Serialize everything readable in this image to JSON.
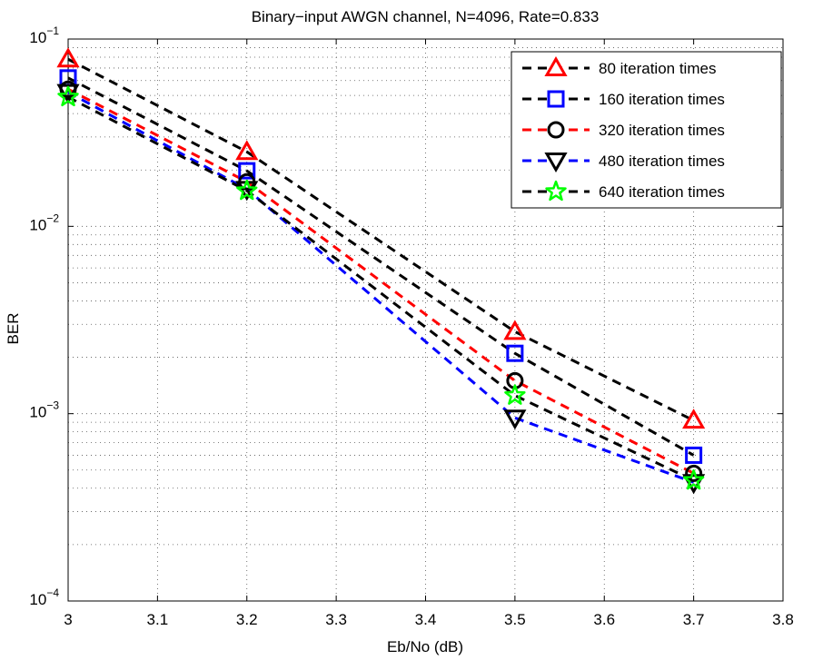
{
  "chart_data": {
    "type": "line",
    "title": "Binary−input AWGN channel, N=4096, Rate=0.833",
    "x_label": "Eb/No (dB)",
    "y_label": "BER",
    "x": [
      3.0,
      3.2,
      3.5,
      3.7
    ],
    "series": [
      {
        "name": "80 iteration times",
        "color": "#ff0000",
        "line_color": "#000000",
        "marker": "triangle-up",
        "values": [
          0.078,
          0.025,
          0.00274,
          0.00092
        ]
      },
      {
        "name": "160 iteration times",
        "color": "#0000ff",
        "line_color": "#000000",
        "marker": "square",
        "values": [
          0.062,
          0.0198,
          0.0021,
          0.0006
        ]
      },
      {
        "name": "320 iteration times",
        "color": "#000000",
        "line_color": "#ff0000",
        "marker": "circle",
        "values": [
          0.054,
          0.0173,
          0.0015,
          0.00048
        ]
      },
      {
        "name": "480 iteration times",
        "color": "#000000",
        "line_color": "#0000ff",
        "marker": "triangle-down",
        "values": [
          0.052,
          0.0158,
          0.00095,
          0.00043
        ]
      },
      {
        "name": "640 iteration times",
        "color": "#00ff00",
        "line_color": "#000000",
        "marker": "star",
        "values": [
          0.049,
          0.0155,
          0.00125,
          0.00044
        ]
      }
    ],
    "xlim": [
      3,
      3.8
    ],
    "xticks": [
      3,
      3.1,
      3.2,
      3.3,
      3.4,
      3.5,
      3.6,
      3.7,
      3.8
    ],
    "ylim": [
      0.0001,
      0.1
    ],
    "y_scale": "log",
    "yticks": [
      {
        "value": 0.0001,
        "label": "10−4"
      },
      {
        "value": 0.001,
        "label": "10−3"
      },
      {
        "value": 0.01,
        "label": "10−2"
      },
      {
        "value": 0.1,
        "label": "10−1"
      }
    ],
    "grid": true,
    "minor_grid": true,
    "legend": "upper right"
  }
}
